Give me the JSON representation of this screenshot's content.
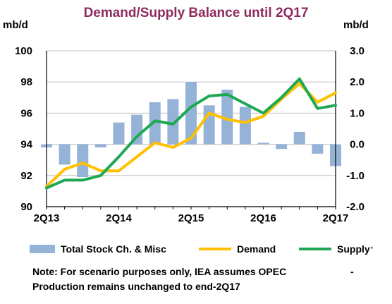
{
  "chart_data": {
    "type": "bar+line",
    "title": "Demand/Supply Balance until 2Q17",
    "ylabel_left": "mb/d",
    "ylabel_right": "mb/d",
    "categories": [
      "2Q13",
      "3Q13",
      "4Q13",
      "1Q14",
      "2Q14",
      "3Q14",
      "4Q14",
      "1Q15",
      "2Q15",
      "3Q15",
      "4Q15",
      "1Q16",
      "2Q16",
      "3Q16",
      "4Q16",
      "1Q17",
      "2Q17"
    ],
    "x_tick_labels": [
      "2Q13",
      "2Q14",
      "2Q15",
      "2Q16",
      "2Q17"
    ],
    "y_left": {
      "min": 90,
      "max": 100,
      "ticks": [
        "90",
        "92",
        "94",
        "96",
        "98",
        "100"
      ]
    },
    "y_right": {
      "min": -2.0,
      "max": 3.0,
      "ticks": [
        "-2.0",
        "-1.0",
        "0.0",
        "1.0",
        "2.0",
        "3.0"
      ]
    },
    "grid": true,
    "legend_position": "bottom",
    "series": [
      {
        "name": "Total Stock Ch. & Misc",
        "type": "bar",
        "axis": "right",
        "color": "#95b3d7",
        "values": [
          -0.1,
          -0.65,
          -1.05,
          -0.1,
          0.7,
          0.95,
          1.35,
          1.45,
          2.0,
          1.25,
          1.75,
          1.2,
          0.05,
          -0.15,
          0.4,
          -0.3,
          -0.7
        ]
      },
      {
        "name": "Demand",
        "type": "line",
        "axis": "left",
        "color": "#ffc000",
        "values": [
          91.3,
          92.4,
          92.8,
          92.3,
          92.3,
          93.2,
          94.1,
          93.8,
          94.4,
          96.0,
          95.6,
          95.4,
          95.8,
          96.9,
          97.9,
          96.7,
          97.3
        ]
      },
      {
        "name": "Supply",
        "type": "line",
        "axis": "left",
        "color": "#1ea854",
        "values": [
          91.2,
          91.7,
          91.7,
          92.0,
          93.2,
          94.5,
          95.5,
          95.3,
          96.4,
          97.1,
          97.2,
          96.6,
          96.0,
          97.0,
          98.2,
          96.3,
          96.5
        ]
      }
    ]
  },
  "legend": {
    "bar_label": "Total Stock Ch. & Misc",
    "demand_label": "Demand",
    "supply_label": "Supply",
    "supply_marker": "*"
  },
  "note": {
    "line1": "Note: For scenario purposes only, IEA assumes OPEC",
    "dash": "-",
    "line2": "Production remains unchanged to end-2Q17"
  }
}
